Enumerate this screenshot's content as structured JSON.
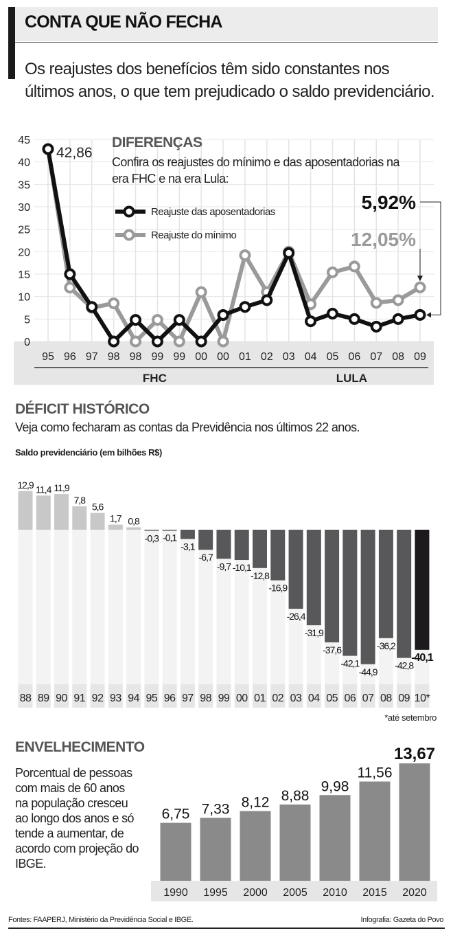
{
  "header": {
    "title": "CONTA QUE NÃO FECHA",
    "subtitle": "Os reajustes dos benefícios têm sido constantes nos últimos anos, o que tem prejudicado o saldo previdenciário."
  },
  "chart_data": [
    {
      "type": "line",
      "title": "DIFERENÇAS",
      "subtitle": "Confira os reajustes do mínimo e das aposentadorias na era FHC e na era Lula:",
      "categories": [
        "95",
        "96",
        "97",
        "98",
        "98",
        "99",
        "99",
        "00",
        "00",
        "01",
        "02",
        "03",
        "04",
        "05",
        "06",
        "07",
        "08",
        "09"
      ],
      "groups": [
        {
          "label": "FHC",
          "from": 0,
          "to": 10
        },
        {
          "label": "LULA",
          "from": 11,
          "to": 17
        }
      ],
      "ylim": [
        0,
        45
      ],
      "yticks": [
        0,
        5,
        10,
        15,
        20,
        25,
        30,
        35,
        40,
        45
      ],
      "grid": true,
      "legend": "top-center",
      "series": [
        {
          "name": "Reajuste das aposentadorias",
          "color": "#111111",
          "values": [
            42.86,
            15,
            7.7,
            0,
            4.8,
            0,
            4.8,
            0,
            5.9,
            7.7,
            9.2,
            19.7,
            4.5,
            6.2,
            5,
            3.3,
            5,
            5.92
          ]
        },
        {
          "name": "Reajuste do mínimo",
          "color": "#9a9a9a",
          "values": [
            42.86,
            12,
            7.5,
            8.5,
            0,
            4.8,
            0,
            11,
            0,
            19.2,
            11,
            20,
            8.3,
            15.4,
            16.7,
            8.6,
            9.2,
            12.05
          ]
        }
      ],
      "annotations": {
        "first": "42,86",
        "last_aposentadorias": "5,92%",
        "last_minimo": "12,05%"
      }
    },
    {
      "type": "bar",
      "title": "DÉFICIT HISTÓRICO",
      "subtitle": "Veja  como fecharam as contas da Previdência nos últimos 22 anos.",
      "ylabel": "Saldo previdenciário (em bilhões R$)",
      "categories": [
        "88",
        "89",
        "90",
        "91",
        "92",
        "93",
        "94",
        "95",
        "96",
        "97",
        "98",
        "99",
        "00",
        "01",
        "02",
        "03",
        "04",
        "05",
        "06",
        "07",
        "08",
        "09",
        "10*"
      ],
      "values": [
        12.9,
        11.4,
        11.9,
        7.8,
        5.6,
        1.7,
        0.8,
        -0.3,
        -0.1,
        -3.1,
        -6.7,
        -9.7,
        -10.1,
        -12.8,
        -16.9,
        -26.4,
        -31.9,
        -37.6,
        -42.1,
        -44.9,
        -36.2,
        -42.8,
        -40.1
      ],
      "labels": [
        "12,9",
        "11,4",
        "11,9",
        "7,8",
        "5,6",
        "1,7",
        "0,8",
        "-0,3",
        "-0,1",
        "-3,1",
        "-6,7",
        "-9,7",
        "-10,1",
        "-12,8",
        "-16,9",
        "-26,4",
        "-31,9",
        "-37,6",
        "-42,1",
        "-44,9",
        "-36,2",
        "-42,8",
        "-40,1"
      ],
      "colors": {
        "positive": "#c8c8c8",
        "negative": "#58585a",
        "highlight": "#1c1a1c"
      },
      "note": "*até setembro"
    },
    {
      "type": "bar",
      "title": "ENVELHECIMENTO",
      "description": "Porcentual de pessoas com mais de 60 anos na população cresceu ao longo dos anos e só tende a aumentar, de acordo com projeção do IBGE.",
      "categories": [
        "1990",
        "1995",
        "2000",
        "2005",
        "2010",
        "2015",
        "2020"
      ],
      "values": [
        6.75,
        7.33,
        8.12,
        8.88,
        9.98,
        11.56,
        13.67
      ],
      "labels": [
        "6,75",
        "7,33",
        "8,12",
        "8,88",
        "9,98",
        "11,56",
        "13,67"
      ],
      "color": "#8a8a8a"
    }
  ],
  "footer": {
    "sources": "Fontes: FAAPERJ, Ministério da Previdência Social e IBGE.",
    "credit": "Infografia: Gazeta do Povo"
  }
}
